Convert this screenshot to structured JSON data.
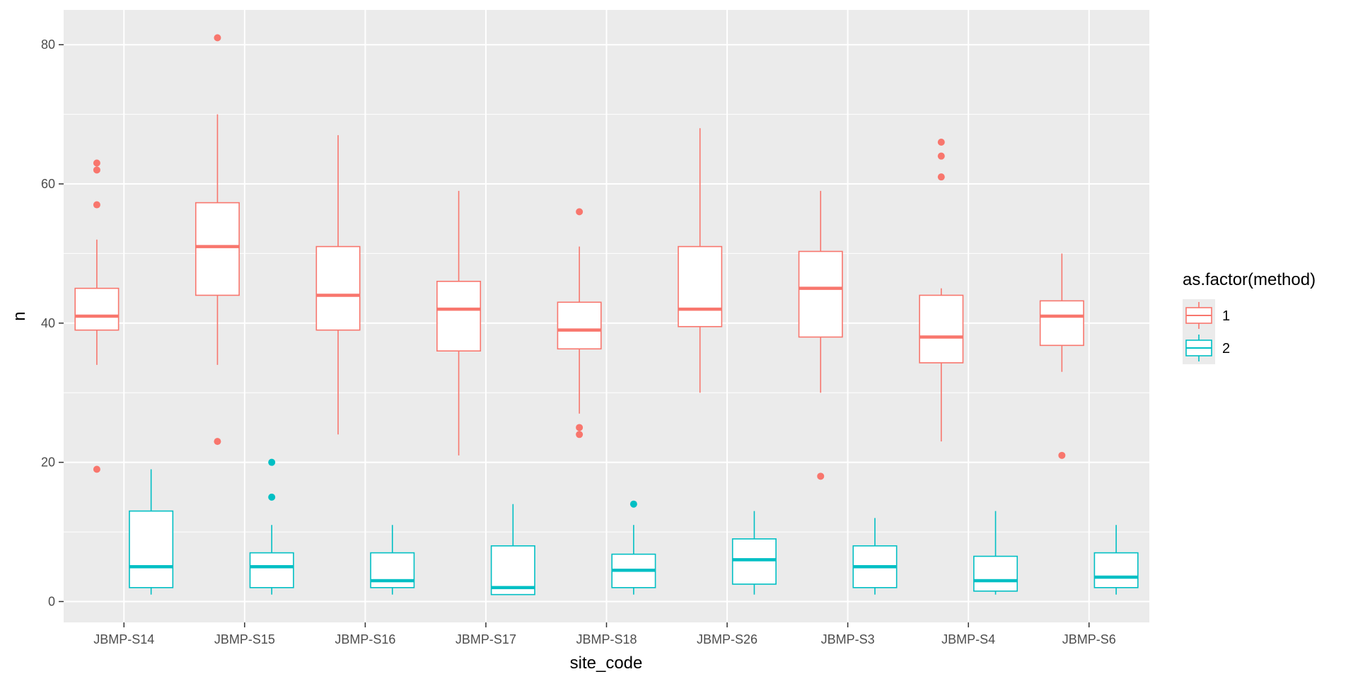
{
  "chart_data": {
    "type": "boxplot",
    "xlabel": "site_code",
    "ylabel": "n",
    "ylim": [
      -3,
      85
    ],
    "yticks": [
      0,
      20,
      40,
      60,
      80
    ],
    "grid": true,
    "legend": {
      "title": "as.factor(method)",
      "position": "right"
    },
    "categories": [
      "JBMP-S14",
      "JBMP-S15",
      "JBMP-S16",
      "JBMP-S17",
      "JBMP-S18",
      "JBMP-S26",
      "JBMP-S3",
      "JBMP-S4",
      "JBMP-S6"
    ],
    "series": [
      {
        "name": "1",
        "color": "#F8766D",
        "boxes": [
          {
            "min": 34,
            "q1": 39,
            "median": 41,
            "q3": 45,
            "max": 52,
            "outliers": [
              19,
              57,
              62,
              63
            ]
          },
          {
            "min": 34,
            "q1": 44,
            "median": 51,
            "q3": 57.3,
            "max": 70,
            "outliers": [
              23,
              81
            ]
          },
          {
            "min": 24,
            "q1": 39,
            "median": 44,
            "q3": 51,
            "max": 67,
            "outliers": []
          },
          {
            "min": 21,
            "q1": 36,
            "median": 42,
            "q3": 46,
            "max": 59,
            "outliers": []
          },
          {
            "min": 27,
            "q1": 36.3,
            "median": 39,
            "q3": 43,
            "max": 51,
            "outliers": [
              24,
              25,
              56
            ]
          },
          {
            "min": 30,
            "q1": 39.5,
            "median": 42,
            "q3": 51,
            "max": 68,
            "outliers": []
          },
          {
            "min": 30,
            "q1": 38,
            "median": 45,
            "q3": 50.3,
            "max": 59,
            "outliers": [
              18
            ]
          },
          {
            "min": 23,
            "q1": 34.3,
            "median": 38,
            "q3": 44,
            "max": 45,
            "outliers": [
              61,
              64,
              66
            ]
          },
          {
            "min": 33,
            "q1": 36.8,
            "median": 41,
            "q3": 43.2,
            "max": 50,
            "outliers": [
              21
            ]
          }
        ]
      },
      {
        "name": "2",
        "color": "#00BFC4",
        "boxes": [
          {
            "min": 1,
            "q1": 2,
            "median": 5,
            "q3": 13,
            "max": 19,
            "outliers": []
          },
          {
            "min": 1,
            "q1": 2,
            "median": 5,
            "q3": 7,
            "max": 11,
            "outliers": [
              15,
              20
            ]
          },
          {
            "min": 1,
            "q1": 2,
            "median": 3,
            "q3": 7,
            "max": 11,
            "outliers": []
          },
          {
            "min": 1,
            "q1": 1,
            "median": 2,
            "q3": 8,
            "max": 14,
            "outliers": []
          },
          {
            "min": 1,
            "q1": 2,
            "median": 4.5,
            "q3": 6.8,
            "max": 11,
            "outliers": [
              14
            ]
          },
          {
            "min": 1,
            "q1": 2.5,
            "median": 6,
            "q3": 9,
            "max": 13,
            "outliers": []
          },
          {
            "min": 1,
            "q1": 2,
            "median": 5,
            "q3": 8,
            "max": 12,
            "outliers": []
          },
          {
            "min": 1,
            "q1": 1.5,
            "median": 3,
            "q3": 6.5,
            "max": 13,
            "outliers": []
          },
          {
            "min": 1,
            "q1": 2,
            "median": 3.5,
            "q3": 7,
            "max": 11,
            "outliers": []
          }
        ]
      }
    ]
  }
}
